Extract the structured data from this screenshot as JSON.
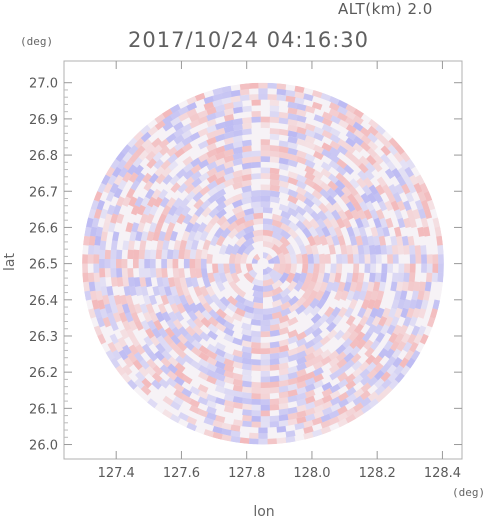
{
  "header": {
    "altitude_label": "ALT(km) 2.0",
    "timestamp": "2017/10/24 04:16:30"
  },
  "chart_data": {
    "type": "heatmap",
    "title": "2017/10/24 04:16:30",
    "xlabel": "lon",
    "ylabel": "lat",
    "x_unit": "(deg)",
    "y_unit": "(deg)",
    "xlim": [
      127.24,
      128.46
    ],
    "ylim": [
      25.96,
      27.06
    ],
    "x_ticks": [
      "127.4",
      "127.6",
      "127.8",
      "128.0",
      "128.2",
      "128.4"
    ],
    "y_ticks": [
      "27.0",
      "26.9",
      "26.8",
      "26.7",
      "26.6",
      "26.5",
      "26.4",
      "26.3",
      "26.2",
      "26.1",
      "26.0"
    ],
    "x_tick_values": [
      127.4,
      127.6,
      127.8,
      128.0,
      128.2,
      128.4
    ],
    "y_tick_values": [
      27.0,
      26.9,
      26.8,
      26.7,
      26.6,
      26.5,
      26.4,
      26.3,
      26.2,
      26.1,
      26.0
    ],
    "radar_center": {
      "lon": 127.85,
      "lat": 26.5
    },
    "radar_radius_deg_lat": 0.5,
    "colors": {
      "positive": "#f08a8a",
      "negative": "#8a8af0",
      "frame": "#b0b0b0"
    },
    "grid": false
  }
}
